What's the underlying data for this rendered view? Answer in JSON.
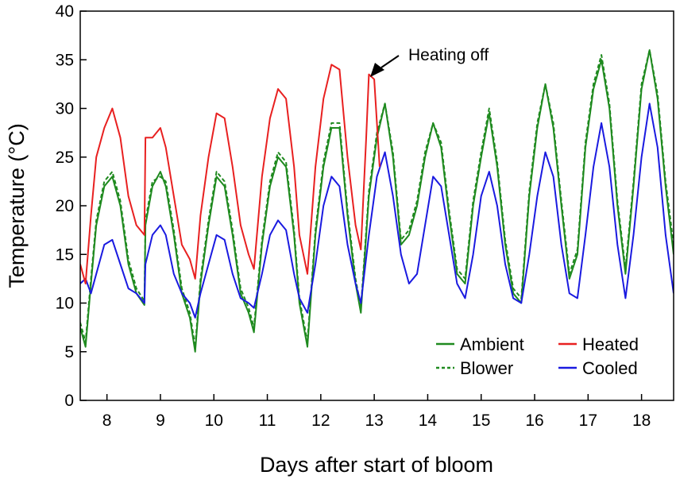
{
  "chart_data": {
    "type": "line",
    "title": "",
    "xlabel": "Days after start of bloom",
    "ylabel": "Temperature (°C)",
    "xlim": [
      7.5,
      18.6
    ],
    "ylim": [
      0,
      40
    ],
    "x_ticks": [
      8,
      9,
      10,
      11,
      12,
      13,
      14,
      15,
      16,
      17,
      18
    ],
    "y_ticks": [
      0,
      5,
      10,
      15,
      20,
      25,
      30,
      35,
      40
    ],
    "grid": false,
    "legend_position": "bottom-right",
    "annotation": {
      "text": "Heating off",
      "x": 12.85,
      "y": 33.5
    },
    "series": [
      {
        "name": "Ambient",
        "style": "solid",
        "color": "#1f8a1f",
        "x": [
          7.5,
          7.6,
          7.7,
          7.8,
          7.95,
          8.1,
          8.25,
          8.4,
          8.55,
          8.7,
          8.72,
          8.85,
          9.0,
          9.1,
          9.25,
          9.4,
          9.55,
          9.65,
          9.75,
          9.9,
          10.05,
          10.2,
          10.35,
          10.5,
          10.65,
          10.75,
          10.9,
          11.05,
          11.2,
          11.35,
          11.5,
          11.6,
          11.75,
          11.9,
          12.05,
          12.2,
          12.35,
          12.5,
          12.65,
          12.75,
          12.9,
          13.05,
          13.2,
          13.35,
          13.5,
          13.65,
          13.8,
          13.95,
          14.1,
          14.25,
          14.4,
          14.55,
          14.7,
          14.85,
          15.0,
          15.15,
          15.3,
          15.45,
          15.6,
          15.75,
          15.9,
          16.05,
          16.2,
          16.35,
          16.5,
          16.65,
          16.8,
          16.95,
          17.1,
          17.25,
          17.4,
          17.55,
          17.7,
          17.85,
          18.0,
          18.15,
          18.3,
          18.45,
          18.6
        ],
        "y": [
          7.5,
          5.5,
          12,
          18,
          22,
          23,
          20,
          14,
          11,
          9.8,
          18,
          22,
          23.5,
          22,
          17,
          11,
          8.5,
          5,
          12,
          18,
          23,
          22,
          17,
          11,
          9,
          7,
          16,
          22,
          25,
          24,
          17,
          10,
          5.5,
          17,
          24,
          28,
          28,
          19,
          12,
          9,
          21,
          27,
          30.5,
          25,
          16,
          17,
          20,
          25,
          28.5,
          26,
          19,
          13,
          12,
          20,
          25,
          29.5,
          24,
          16,
          11,
          10,
          21,
          28,
          32.5,
          28,
          20,
          12.5,
          15,
          26,
          32,
          35,
          30,
          20,
          13,
          22,
          32,
          36,
          31,
          22,
          15
        ]
      },
      {
        "name": "Blower",
        "style": "dashed",
        "color": "#1f8a1f",
        "x": [
          7.5,
          7.6,
          7.7,
          7.8,
          7.95,
          8.1,
          8.25,
          8.4,
          8.55,
          8.7,
          8.72,
          8.85,
          9.0,
          9.1,
          9.25,
          9.4,
          9.55,
          9.65,
          9.75,
          9.9,
          10.05,
          10.2,
          10.35,
          10.5,
          10.65,
          10.75,
          10.9,
          11.05,
          11.2,
          11.35,
          11.5,
          11.6,
          11.75,
          11.9,
          12.05,
          12.2,
          12.35,
          12.5,
          12.65,
          12.75,
          12.9,
          13.05,
          13.2,
          13.35,
          13.5,
          13.65,
          13.8,
          13.95,
          14.1,
          14.25,
          14.4,
          14.55,
          14.7,
          14.85,
          15.0,
          15.15,
          15.3,
          15.45,
          15.6,
          15.75,
          15.9,
          16.05,
          16.2,
          16.35,
          16.5,
          16.65,
          16.8,
          16.95,
          17.1,
          17.25,
          17.4,
          17.55,
          17.7,
          17.85,
          18.0,
          18.15,
          18.3,
          18.45,
          18.6
        ],
        "y": [
          8,
          6,
          12.5,
          18.5,
          22.5,
          23.5,
          20.5,
          14.5,
          11.5,
          10.2,
          18.5,
          22.5,
          23,
          22.5,
          17.5,
          11.5,
          9,
          5.5,
          12.5,
          18.5,
          23.5,
          22.5,
          17.5,
          11.5,
          9.5,
          7.5,
          16.5,
          22.5,
          25.5,
          24.5,
          17.5,
          10.5,
          6,
          17.5,
          24.5,
          28.5,
          28.5,
          19.5,
          12.5,
          9.5,
          21.5,
          27.5,
          30.5,
          25.5,
          16.5,
          17.5,
          20.5,
          25.5,
          28.5,
          26.5,
          19.5,
          13.5,
          12.5,
          20.5,
          25.5,
          30,
          24.5,
          16.5,
          11.5,
          10.5,
          21.5,
          28.5,
          32.5,
          28.5,
          20.5,
          13,
          15.5,
          26.5,
          32.5,
          35.5,
          30.5,
          20.5,
          13.5,
          22.5,
          32.5,
          36,
          31.5,
          22.5,
          16
        ]
      },
      {
        "name": "Heated",
        "style": "solid",
        "color": "#e82020",
        "x": [
          7.5,
          7.6,
          7.7,
          7.8,
          7.95,
          8.1,
          8.25,
          8.4,
          8.55,
          8.7,
          8.72,
          8.85,
          9.0,
          9.1,
          9.25,
          9.4,
          9.55,
          9.65,
          9.75,
          9.9,
          10.05,
          10.2,
          10.35,
          10.5,
          10.65,
          10.75,
          10.9,
          11.05,
          11.2,
          11.35,
          11.5,
          11.6,
          11.75,
          11.9,
          12.05,
          12.2,
          12.35,
          12.5,
          12.65,
          12.75,
          12.85,
          12.9,
          13.0,
          13.1
        ],
        "y": [
          14,
          12,
          19,
          25,
          28,
          30,
          27,
          21,
          18,
          17,
          27,
          27,
          28,
          26,
          21,
          16,
          14.5,
          12.5,
          19,
          25,
          29.5,
          29,
          24,
          18,
          15,
          13.5,
          23,
          29,
          32,
          31,
          24,
          17,
          13,
          24,
          31,
          34.5,
          34,
          25,
          18,
          15.5,
          27,
          33.5,
          33,
          24
        ]
      },
      {
        "name": "Cooled",
        "style": "solid",
        "color": "#1a1ae0",
        "x": [
          7.5,
          7.6,
          7.7,
          7.8,
          7.95,
          8.1,
          8.25,
          8.4,
          8.55,
          8.7,
          8.72,
          8.85,
          9.0,
          9.1,
          9.25,
          9.4,
          9.55,
          9.65,
          9.75,
          9.9,
          10.05,
          10.2,
          10.35,
          10.5,
          10.65,
          10.75,
          10.9,
          11.05,
          11.2,
          11.35,
          11.5,
          11.6,
          11.75,
          11.9,
          12.05,
          12.2,
          12.35,
          12.5,
          12.65,
          12.75,
          12.9,
          13.05,
          13.2,
          13.35,
          13.5,
          13.65,
          13.8,
          13.95,
          14.1,
          14.25,
          14.4,
          14.55,
          14.7,
          14.85,
          15.0,
          15.15,
          15.3,
          15.45,
          15.6,
          15.75,
          15.9,
          16.05,
          16.2,
          16.35,
          16.5,
          16.65,
          16.8,
          16.95,
          17.1,
          17.25,
          17.4,
          17.55,
          17.7,
          17.85,
          18.0,
          18.15,
          18.3,
          18.45,
          18.6
        ],
        "y": [
          12,
          12.5,
          11,
          13,
          16,
          16.5,
          14,
          11.5,
          11,
          10,
          14,
          17,
          18,
          17,
          13,
          11,
          10,
          8.5,
          11,
          14,
          17,
          16.5,
          13,
          10.5,
          10,
          9.5,
          13,
          17,
          18.5,
          17.5,
          13,
          10.5,
          9,
          14,
          20,
          23,
          22,
          16,
          12,
          10,
          17,
          23,
          25.5,
          21,
          15,
          12,
          13,
          18,
          23,
          22,
          17,
          12,
          10.5,
          15,
          21,
          23.5,
          20,
          14,
          10.5,
          10,
          15,
          21,
          25.5,
          23,
          16,
          11,
          10.5,
          17,
          24,
          28.5,
          24,
          16,
          10.5,
          17,
          25,
          30.5,
          26,
          17,
          11
        ]
      }
    ]
  }
}
